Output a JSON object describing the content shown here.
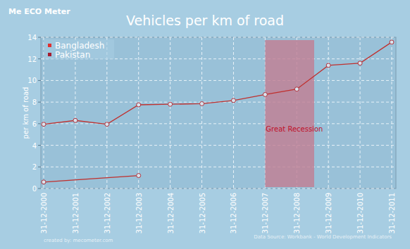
{
  "chart_data": {
    "type": "line",
    "title": "Vehicles per km of road",
    "logo": "Me ECO Meter",
    "y_label": "per km of road",
    "source": "Data Source: Workbank - World Development Indicators",
    "credit": "created by: mecometer.com",
    "categories": [
      "31-12-2000",
      "31-12-2001",
      "31-12-2002",
      "31-12-2003",
      "31-12-2004",
      "31-12-2005",
      "31-12-2006",
      "31-12-2007",
      "31-12-2008",
      "31-12-2009",
      "31-12-2010",
      "31-12-2011"
    ],
    "series": [
      {
        "name": "Bangladesh",
        "color": "#e03030",
        "x": [
          "31-12-2000",
          "31-12-2003"
        ],
        "values": [
          0.6,
          1.2
        ]
      },
      {
        "name": "Pakistan",
        "color": "#a51c30",
        "values": [
          5.95,
          6.3,
          5.95,
          7.75,
          7.8,
          7.85,
          8.15,
          8.7,
          9.2,
          11.4,
          11.6,
          13.55
        ]
      }
    ],
    "bands": [
      {
        "label": "Great Recession",
        "x_start": 7,
        "x_end": 8.55,
        "label_y": 5.3
      }
    ],
    "ylim": [
      0,
      14
    ],
    "yticks": [
      0,
      2,
      4,
      6,
      8,
      10,
      12,
      14
    ],
    "grid": true,
    "legend": "upper left",
    "marker": "circle"
  }
}
